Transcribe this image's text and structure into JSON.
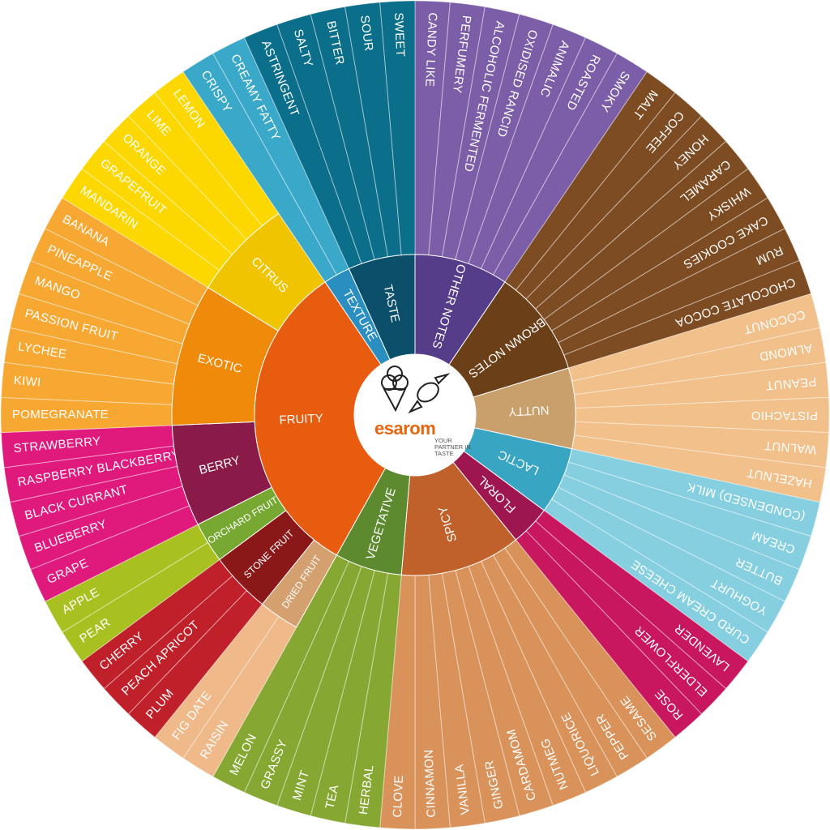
{
  "logo": {
    "brand": "esarom",
    "tagline": "YOUR PARTNER IN TASTE"
  },
  "wheel": {
    "categories": [
      {
        "label": "OTHER NOTES",
        "color": "#553d8a",
        "leaf_color": "#7b5ea7",
        "items": [
          "CANDY LIKE",
          "PERFUMERY",
          "ALCOHOLIC FERMENTED",
          "OXIDISED RANCID",
          "ANIMALIC",
          "ROASTED",
          "SMOKY"
        ]
      },
      {
        "label": "BROWN NOTES",
        "color": "#6b3f18",
        "leaf_color": "#7d4c23",
        "items": [
          "MALT",
          "COFFEE",
          "HONEY",
          "CARAMEL",
          "WHISKY",
          "CAKE COOKIES",
          "RUM",
          "CHOCOLATE COCOA"
        ]
      },
      {
        "label": "NUTTY",
        "color": "#c99f6c",
        "leaf_color": "#f2c08a",
        "items": [
          "COCONUT",
          "ALMOND",
          "PEANUT",
          "PISTACHIO",
          "WALNUT",
          "HAZELNUT"
        ]
      },
      {
        "label": "LACTIC",
        "color": "#38a6c2",
        "leaf_color": "#86cfe0",
        "items": [
          "(CONDENSED) MILK",
          "CREAM",
          "BUTTER",
          "YOGHURT",
          "CURD CREAM CHEESE"
        ]
      },
      {
        "label": "FLORAL",
        "color": "#9e1650",
        "leaf_color": "#c8175e",
        "items": [
          "LAVENDER",
          "ELDERFLOWER",
          "ROSE"
        ]
      },
      {
        "label": "SPICY",
        "color": "#c0602a",
        "leaf_color": "#d9935a",
        "items": [
          "SESAME",
          "PEPPER",
          "LIQUORICE",
          "NUTMEG",
          "CARDAMOM",
          "GINGER",
          "VANILLA",
          "CINNAMON",
          "CLOVE"
        ]
      },
      {
        "label": "VEGETATIVE",
        "color": "#5e8a2f",
        "leaf_color": "#86a832",
        "items": [
          "HERBAL",
          "TEA",
          "MINT",
          "GRASSY",
          "MELON"
        ]
      },
      {
        "label": "FRUITY",
        "color": "#e85c10",
        "groups": [
          {
            "label": "DRIED FRUIT",
            "color": "#d4a070",
            "leaf_color": "#f0b98a",
            "items": [
              "RAISIN",
              "FIG DATE"
            ]
          },
          {
            "label": "STONE FRUIT",
            "color": "#8b1818",
            "leaf_color": "#c0202a",
            "items": [
              "PLUM",
              "PEACH APRICOT",
              "CHERRY"
            ]
          },
          {
            "label": "ORCHARD FRUIT",
            "color": "#76a832",
            "leaf_color": "#a8c020",
            "items": [
              "PEAR",
              "APPLE"
            ]
          },
          {
            "label": "BERRY",
            "color": "#8a1a48",
            "leaf_color": "#e0197d",
            "items": [
              "GRAPE",
              "BLUEBERRY",
              "BLACK CURRANT",
              "RASPBERRY BLACKBERRY",
              "STRAWBERRY"
            ]
          },
          {
            "label": "EXOTIC",
            "color": "#f08a0a",
            "leaf_color": "#f7a833",
            "items": [
              "POMEGRANATE",
              "KIWI",
              "LYCHEE",
              "PASSION FRUIT",
              "MANGO",
              "PINEAPPLE",
              "BANANA"
            ]
          },
          {
            "label": "CITRUS",
            "color": "#f0c400",
            "leaf_color": "#fcd800",
            "items": [
              "MANDARIN",
              "GRAPEFRUIT",
              "ORANGE",
              "LIME",
              "LEMON"
            ]
          }
        ]
      },
      {
        "label": "TEXTURE",
        "color": "#2a8fc0",
        "leaf_color": "#3aa8c8",
        "items": [
          "CRISPY",
          "CREAMY FATTY"
        ]
      },
      {
        "label": "TASTE",
        "color": "#0b4f6b",
        "leaf_color": "#0b6e8a",
        "items": [
          "ASTRINGENT",
          "SALTY",
          "BITTER",
          "SOUR",
          "SWEET"
        ]
      }
    ]
  }
}
